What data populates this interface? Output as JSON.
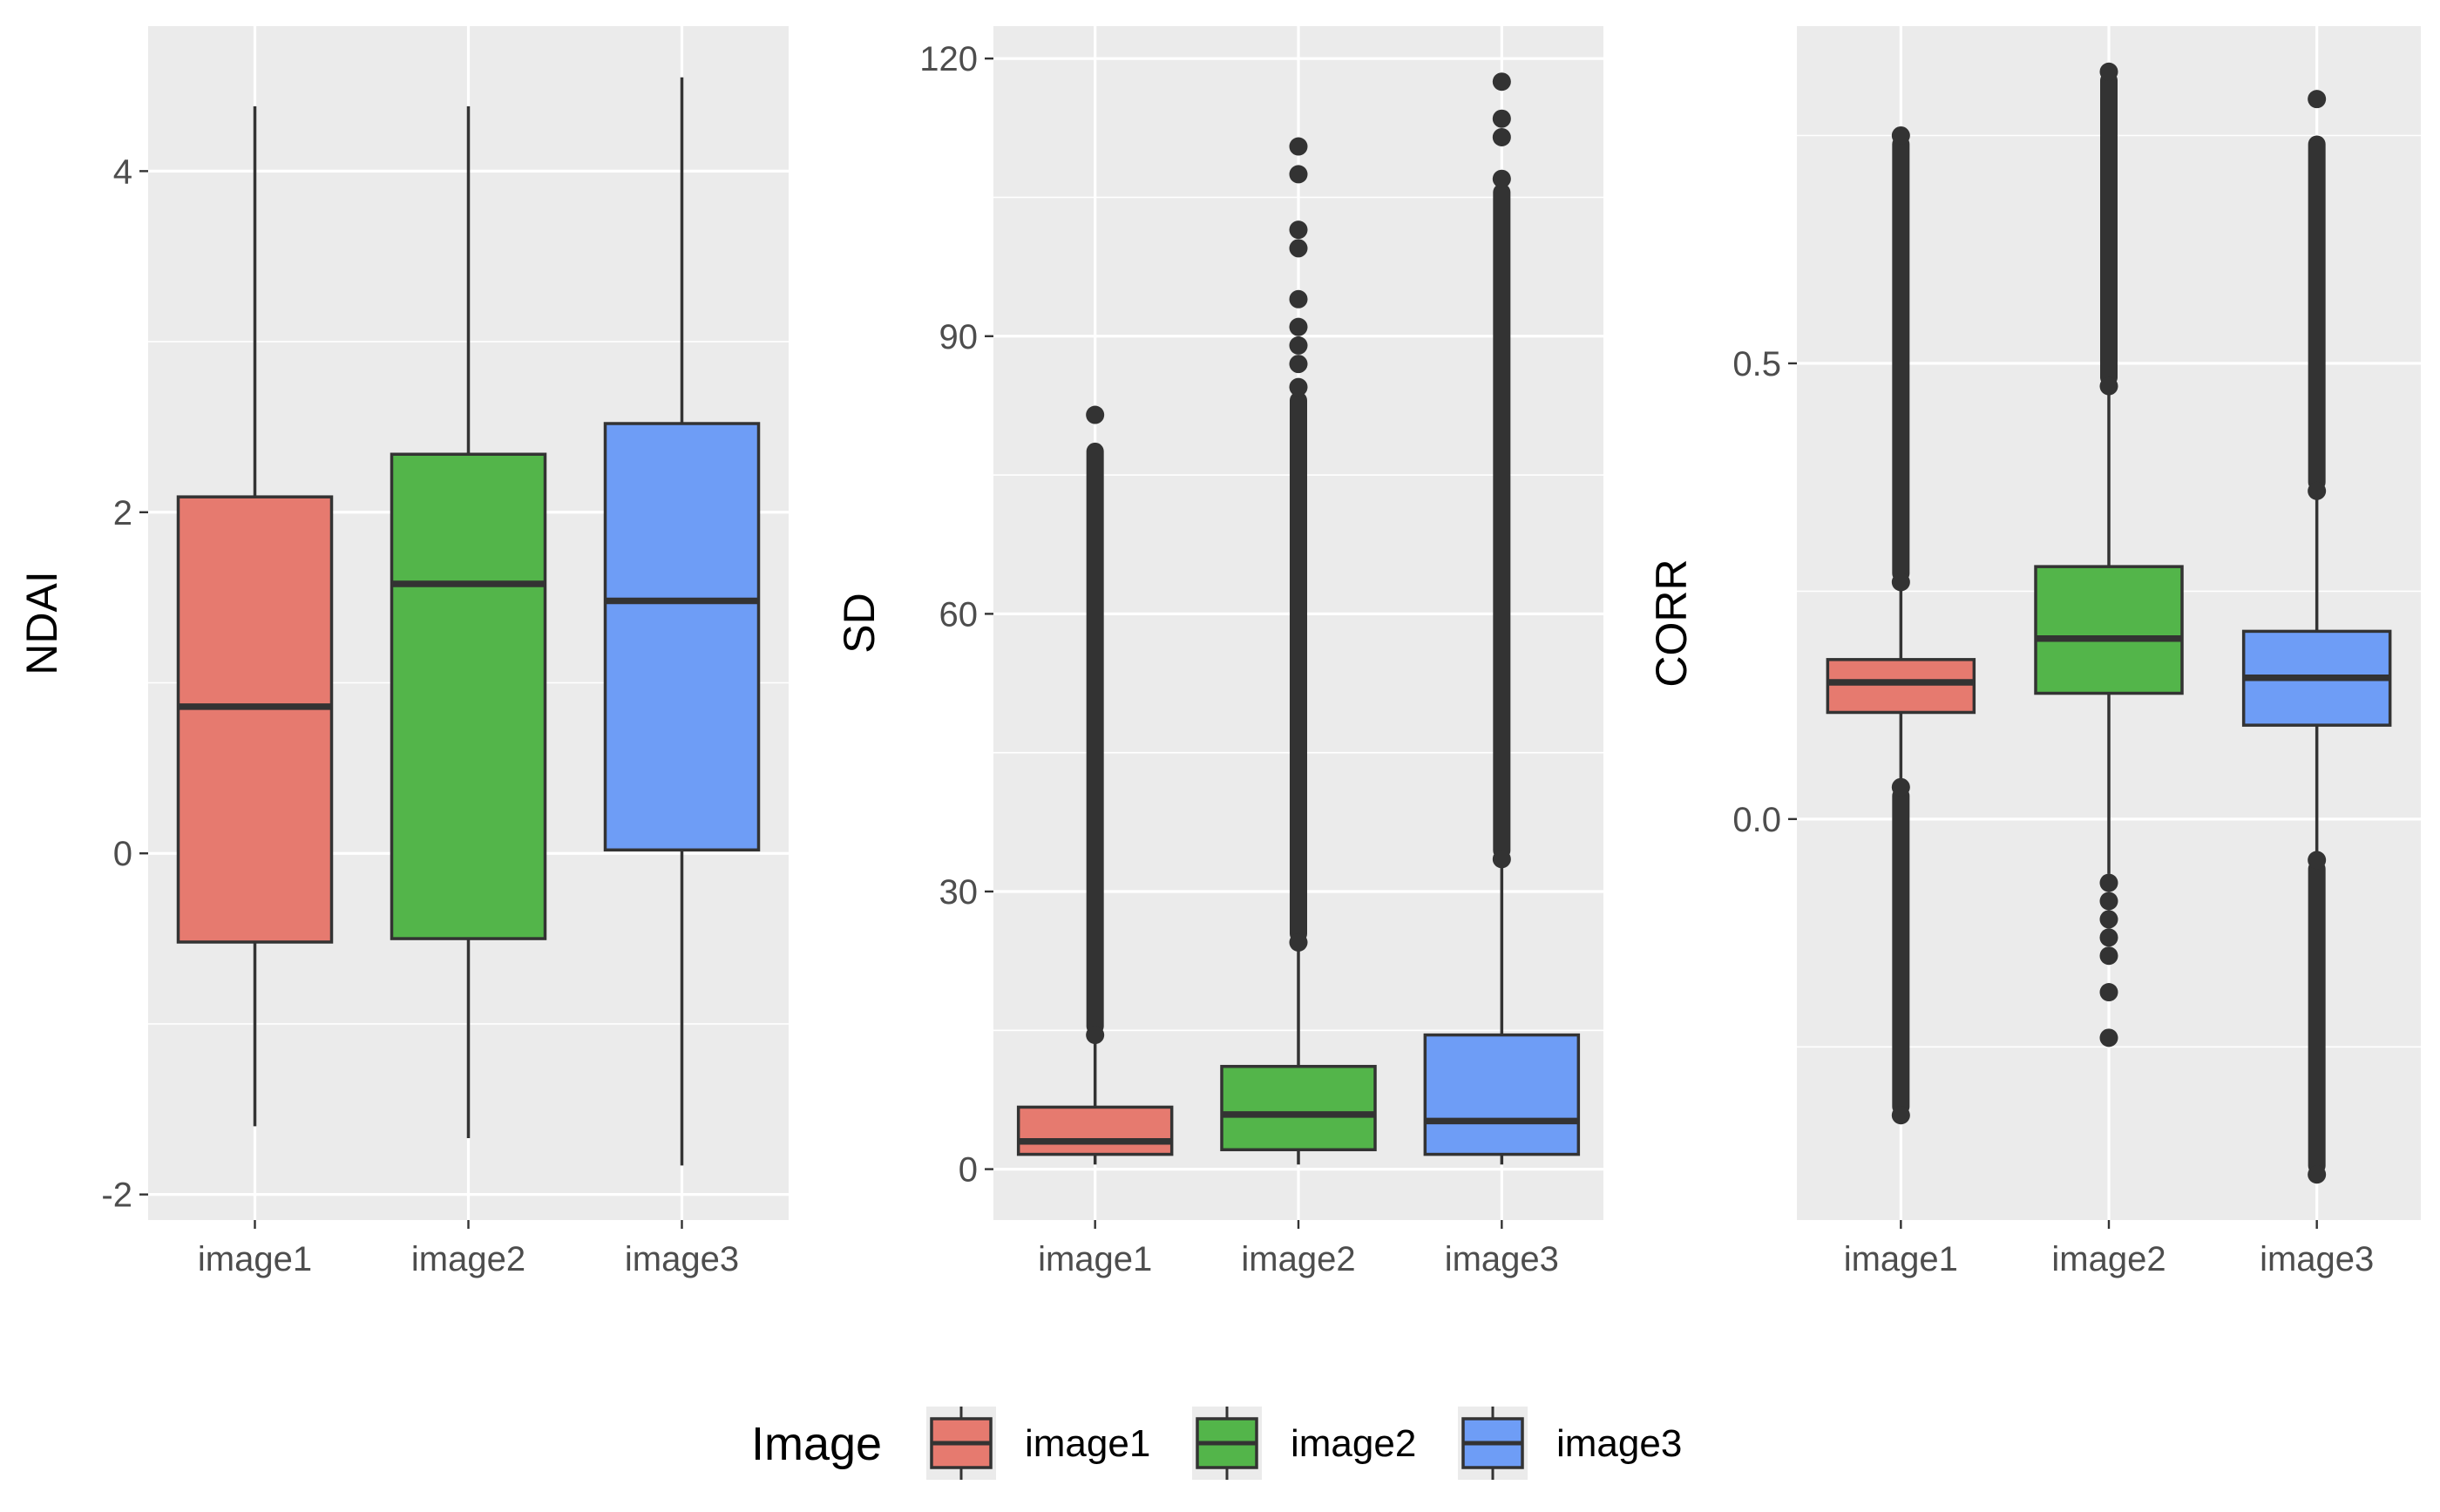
{
  "chart_data": [
    {
      "type": "box",
      "ylabel": "NDAI",
      "categories": [
        "image1",
        "image2",
        "image3"
      ],
      "yticks": [
        -2,
        0,
        2,
        4
      ],
      "ytick_labels": [
        "-2",
        "0",
        "2",
        "4"
      ],
      "ylim": [
        -2.15,
        4.85
      ],
      "boxes": [
        {
          "category": "image1",
          "q1": -0.52,
          "median": 0.86,
          "q3": 2.09,
          "whisker_low": -1.6,
          "whisker_high": 4.38,
          "outliers": []
        },
        {
          "category": "image2",
          "q1": -0.5,
          "median": 1.58,
          "q3": 2.34,
          "whisker_low": -1.67,
          "whisker_high": 4.38,
          "outliers": []
        },
        {
          "category": "image3",
          "q1": 0.02,
          "median": 1.48,
          "q3": 2.52,
          "whisker_low": -1.83,
          "whisker_high": 4.55,
          "outliers": []
        }
      ]
    },
    {
      "type": "box",
      "ylabel": "SD",
      "categories": [
        "image1",
        "image2",
        "image3"
      ],
      "yticks": [
        0,
        30,
        60,
        90,
        120
      ],
      "ytick_labels": [
        "0",
        "30",
        "60",
        "90",
        "120"
      ],
      "ylim": [
        -5.5,
        123.5
      ],
      "boxes": [
        {
          "category": "image1",
          "q1": 1.6,
          "median": 3.0,
          "q3": 6.7,
          "whisker_low": 0.5,
          "whisker_high": 14.0,
          "outliers": [
            14.5,
            81.5
          ],
          "outlier_band": [
            14.5,
            78.5
          ]
        },
        {
          "category": "image2",
          "q1": 2.1,
          "median": 5.9,
          "q3": 11.1,
          "whisker_low": 0.5,
          "whisker_high": 24.0,
          "outliers": [
            24.5,
            84.5,
            87.0,
            89.0,
            91.0,
            94.0,
            99.5,
            101.5,
            107.5,
            110.5
          ],
          "outlier_band": [
            24.5,
            84.0
          ]
        },
        {
          "category": "image3",
          "q1": 1.6,
          "median": 5.2,
          "q3": 14.5,
          "whisker_low": 0.5,
          "whisker_high": 33.0,
          "outliers": [
            33.5,
            107.0,
            111.5,
            113.5,
            117.5
          ],
          "outlier_band": [
            33.5,
            106.5
          ]
        }
      ]
    },
    {
      "type": "box",
      "ylabel": "CORR",
      "categories": [
        "image1",
        "image2",
        "image3"
      ],
      "yticks": [
        0.0,
        0.5
      ],
      "ytick_labels": [
        "0.0",
        "0.5"
      ],
      "minor_gridlines": [
        -0.25,
        0.25,
        0.75
      ],
      "ylim": [
        -0.44,
        0.87
      ],
      "boxes": [
        {
          "category": "image1",
          "q1": 0.117,
          "median": 0.15,
          "q3": 0.175,
          "whisker_low": 0.038,
          "whisker_high": 0.255,
          "outliers": [
            0.035,
            -0.325,
            0.26,
            0.75
          ],
          "outlier_band_low": [
            -0.325,
            0.035
          ],
          "outlier_band_high": [
            0.26,
            0.75
          ]
        },
        {
          "category": "image2",
          "q1": 0.138,
          "median": 0.198,
          "q3": 0.277,
          "whisker_low": -0.06,
          "whisker_high": 0.47,
          "outliers": [
            -0.07,
            -0.09,
            -0.11,
            -0.13,
            -0.15,
            -0.19,
            -0.24,
            0.475,
            0.82
          ],
          "outlier_band_high": [
            0.475,
            0.82
          ]
        },
        {
          "category": "image3",
          "q1": 0.103,
          "median": 0.155,
          "q3": 0.206,
          "whisker_low": -0.04,
          "whisker_high": 0.355,
          "outliers": [
            -0.045,
            -0.39,
            0.36,
            0.79
          ],
          "outlier_band_low": [
            -0.39,
            -0.045
          ],
          "outlier_band_high": [
            0.36,
            0.75
          ]
        }
      ]
    }
  ],
  "legend": {
    "title": "Image",
    "position": "bottom",
    "items": [
      {
        "label": "image1",
        "color": "#E67A6F"
      },
      {
        "label": "image2",
        "color": "#53B54A"
      },
      {
        "label": "image3",
        "color": "#6E9DF6"
      }
    ]
  },
  "colors": {
    "panel_background": "#EBEBEB",
    "gridline": "#FFFFFF",
    "ink": "#333333",
    "axis_text": "#4D4D4D"
  }
}
